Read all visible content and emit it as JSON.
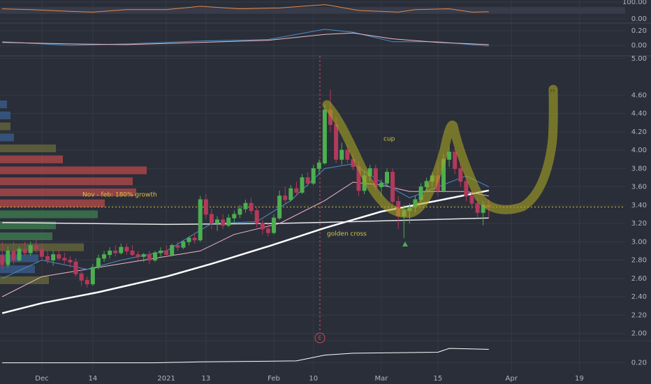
{
  "chart_data": {
    "type": "candlestick",
    "xlim": [
      -7.4,
      103.1
    ],
    "xticks": [
      {
        "value": 0,
        "label": "Dec"
      },
      {
        "value": 9,
        "label": "14"
      },
      {
        "value": 22,
        "label": "2021"
      },
      {
        "value": 29,
        "label": "13"
      },
      {
        "value": 41,
        "label": "Feb"
      },
      {
        "value": 48,
        "label": "10"
      },
      {
        "value": 60,
        "label": "Mar"
      },
      {
        "value": 70,
        "label": "15"
      },
      {
        "value": 83,
        "label": "Apr"
      },
      {
        "value": 95,
        "label": "19"
      }
    ],
    "ylim": [
      1.92,
      5.03
    ],
    "yticks": [
      {
        "value": 5.0,
        "label": "5.00"
      },
      {
        "value": 4.6,
        "label": "4.60"
      },
      {
        "value": 4.4,
        "label": "4.40"
      },
      {
        "value": 4.2,
        "label": "4.20"
      },
      {
        "value": 4.0,
        "label": "4.00"
      },
      {
        "value": 3.8,
        "label": "3.80"
      },
      {
        "value": 3.6,
        "label": "3.60"
      },
      {
        "value": 3.4,
        "label": "3.40"
      },
      {
        "value": 3.2,
        "label": "3.20"
      },
      {
        "value": 3.0,
        "label": "3.00"
      },
      {
        "value": 2.8,
        "label": "2.80"
      },
      {
        "value": 2.6,
        "label": "2.60"
      },
      {
        "value": 2.4,
        "label": "2.40"
      },
      {
        "value": 2.2,
        "label": "2.20"
      },
      {
        "value": 2.0,
        "label": "2.00"
      }
    ],
    "grid": true,
    "up_color": "#4caf50",
    "down_color": "#b23a5a",
    "x": [
      -7,
      -6,
      -5,
      -4,
      -3,
      -2,
      -1,
      0,
      1,
      2,
      3,
      4,
      5,
      6,
      7,
      8,
      9,
      10,
      11,
      12,
      13,
      14,
      15,
      16,
      17,
      18,
      19,
      20,
      21,
      22,
      23,
      24,
      25,
      26,
      27,
      28,
      29,
      30,
      31,
      32,
      33,
      34,
      35,
      36,
      37,
      38,
      39,
      40,
      41,
      42,
      43,
      44,
      45,
      46,
      47,
      48,
      49,
      50,
      51,
      52,
      53,
      54,
      55,
      56,
      57,
      58,
      59,
      60,
      61,
      62,
      63,
      64,
      65,
      66,
      67,
      68,
      69,
      70,
      71,
      72,
      73,
      74,
      75,
      76,
      77,
      78,
      79
    ],
    "ohlc": [
      [
        2.85,
        3.0,
        2.7,
        2.75
      ],
      [
        2.75,
        2.95,
        2.72,
        2.9
      ],
      [
        2.9,
        3.0,
        2.75,
        2.8
      ],
      [
        2.8,
        2.95,
        2.78,
        2.92
      ],
      [
        2.92,
        3.0,
        2.85,
        2.88
      ],
      [
        2.88,
        3.0,
        2.85,
        2.96
      ],
      [
        2.96,
        3.02,
        2.88,
        2.92
      ],
      [
        2.92,
        2.98,
        2.8,
        2.84
      ],
      [
        2.84,
        2.9,
        2.76,
        2.8
      ],
      [
        2.8,
        2.9,
        2.74,
        2.86
      ],
      [
        2.86,
        2.92,
        2.8,
        2.82
      ],
      [
        2.82,
        2.88,
        2.76,
        2.8
      ],
      [
        2.8,
        2.84,
        2.72,
        2.78
      ],
      [
        2.78,
        2.82,
        2.62,
        2.65
      ],
      [
        2.65,
        2.7,
        2.52,
        2.58
      ],
      [
        2.58,
        2.62,
        2.5,
        2.54
      ],
      [
        2.54,
        2.76,
        2.52,
        2.72
      ],
      [
        2.72,
        2.86,
        2.7,
        2.82
      ],
      [
        2.82,
        2.9,
        2.78,
        2.86
      ],
      [
        2.86,
        2.94,
        2.82,
        2.9
      ],
      [
        2.9,
        2.96,
        2.84,
        2.88
      ],
      [
        2.88,
        2.98,
        2.86,
        2.94
      ],
      [
        2.94,
        2.98,
        2.86,
        2.9
      ],
      [
        2.9,
        2.96,
        2.84,
        2.86
      ],
      [
        2.86,
        2.9,
        2.8,
        2.84
      ],
      [
        2.84,
        2.88,
        2.78,
        2.86
      ],
      [
        2.86,
        2.9,
        2.76,
        2.8
      ],
      [
        2.8,
        2.9,
        2.78,
        2.88
      ],
      [
        2.88,
        2.94,
        2.84,
        2.9
      ],
      [
        2.9,
        2.96,
        2.84,
        2.86
      ],
      [
        2.86,
        2.98,
        2.84,
        2.96
      ],
      [
        2.96,
        3.0,
        2.9,
        2.94
      ],
      [
        2.94,
        3.02,
        2.92,
        3.0
      ],
      [
        3.0,
        3.06,
        2.96,
        3.04
      ],
      [
        3.04,
        3.1,
        2.98,
        3.02
      ],
      [
        3.02,
        3.5,
        3.0,
        3.46
      ],
      [
        3.46,
        3.52,
        3.25,
        3.3
      ],
      [
        3.3,
        3.36,
        3.14,
        3.2
      ],
      [
        3.2,
        3.28,
        3.12,
        3.24
      ],
      [
        3.24,
        3.3,
        3.14,
        3.18
      ],
      [
        3.18,
        3.3,
        3.16,
        3.26
      ],
      [
        3.26,
        3.34,
        3.2,
        3.3
      ],
      [
        3.3,
        3.4,
        3.26,
        3.36
      ],
      [
        3.36,
        3.46,
        3.32,
        3.42
      ],
      [
        3.42,
        3.48,
        3.3,
        3.34
      ],
      [
        3.34,
        3.38,
        3.16,
        3.2
      ],
      [
        3.2,
        3.24,
        3.08,
        3.14
      ],
      [
        3.14,
        3.2,
        3.06,
        3.1
      ],
      [
        3.1,
        3.3,
        3.08,
        3.26
      ],
      [
        3.26,
        3.56,
        3.24,
        3.5
      ],
      [
        3.5,
        3.6,
        3.42,
        3.46
      ],
      [
        3.46,
        3.62,
        3.44,
        3.58
      ],
      [
        3.58,
        3.66,
        3.5,
        3.54
      ],
      [
        3.54,
        3.74,
        3.52,
        3.7
      ],
      [
        3.7,
        3.76,
        3.6,
        3.64
      ],
      [
        3.64,
        3.84,
        3.62,
        3.8
      ],
      [
        3.8,
        3.9,
        3.74,
        3.86
      ],
      [
        3.86,
        4.5,
        3.84,
        4.44
      ],
      [
        4.44,
        4.66,
        4.2,
        4.28
      ],
      [
        4.28,
        4.36,
        3.86,
        3.9
      ],
      [
        3.9,
        4.08,
        3.84,
        4.0
      ],
      [
        4.0,
        4.06,
        3.86,
        3.9
      ],
      [
        3.9,
        3.96,
        3.78,
        3.82
      ],
      [
        3.82,
        3.88,
        3.5,
        3.56
      ],
      [
        3.56,
        3.78,
        3.52,
        3.72
      ],
      [
        3.72,
        3.84,
        3.66,
        3.8
      ],
      [
        3.8,
        3.84,
        3.56,
        3.6
      ],
      [
        3.6,
        3.68,
        3.5,
        3.64
      ],
      [
        3.64,
        3.8,
        3.6,
        3.76
      ],
      [
        3.76,
        3.8,
        3.4,
        3.44
      ],
      [
        3.44,
        3.5,
        3.14,
        3.28
      ],
      [
        3.28,
        3.4,
        3.04,
        3.34
      ],
      [
        3.34,
        3.42,
        3.2,
        3.38
      ],
      [
        3.38,
        3.5,
        3.32,
        3.46
      ],
      [
        3.46,
        3.64,
        3.42,
        3.6
      ],
      [
        3.6,
        3.7,
        3.54,
        3.66
      ],
      [
        3.66,
        3.76,
        3.6,
        3.72
      ],
      [
        3.72,
        3.86,
        3.5,
        3.56
      ],
      [
        3.56,
        3.96,
        3.54,
        3.9
      ],
      [
        3.9,
        4.04,
        3.82,
        3.98
      ],
      [
        3.98,
        4.02,
        3.74,
        3.8
      ],
      [
        3.8,
        3.86,
        3.6,
        3.66
      ],
      [
        3.66,
        3.72,
        3.44,
        3.5
      ],
      [
        3.5,
        3.56,
        3.36,
        3.42
      ],
      [
        3.42,
        3.48,
        3.26,
        3.32
      ],
      [
        3.32,
        3.44,
        3.18,
        3.4
      ],
      [
        3.4,
        3.46,
        3.26,
        3.38
      ]
    ],
    "moving_averages": [
      {
        "color": "#ffffff",
        "width": 2.5,
        "x": [
          -7,
          0,
          10,
          22,
          30,
          40,
          50,
          60,
          70,
          79
        ],
        "values": [
          2.22,
          2.33,
          2.45,
          2.62,
          2.76,
          2.95,
          3.15,
          3.33,
          3.45,
          3.56
        ]
      },
      {
        "color": "#e8e8e8",
        "width": 1.5,
        "x": [
          -7,
          22,
          41,
          55,
          79
        ],
        "values": [
          3.21,
          3.19,
          3.2,
          3.22,
          3.26
        ]
      },
      {
        "color": "#f0b8c8",
        "width": 1,
        "x": [
          -7,
          0,
          10,
          20,
          28,
          34,
          42,
          50,
          55,
          60,
          65,
          70,
          75,
          79
        ],
        "values": [
          2.4,
          2.62,
          2.72,
          2.82,
          2.9,
          3.08,
          3.2,
          3.45,
          3.65,
          3.62,
          3.55,
          3.55,
          3.55,
          3.5
        ]
      },
      {
        "color": "#4a90c8",
        "width": 1,
        "x": [
          -7,
          0,
          8,
          14,
          22,
          30,
          38,
          44,
          50,
          55,
          60,
          65,
          70,
          75,
          79
        ],
        "values": [
          2.6,
          2.8,
          2.7,
          2.8,
          2.9,
          3.2,
          3.22,
          3.45,
          3.8,
          3.85,
          3.65,
          3.48,
          3.6,
          3.72,
          3.6
        ]
      }
    ],
    "price_line": {
      "value": 3.38,
      "color": "#d4c22f"
    },
    "volume_profile": {
      "prices": [
        4.5,
        4.38,
        4.26,
        4.14,
        4.02,
        3.9,
        3.78,
        3.66,
        3.54,
        3.42,
        3.3,
        3.18,
        3.06,
        2.94,
        2.82,
        2.7,
        2.58
      ],
      "values": [
        10,
        15,
        15,
        20,
        80,
        90,
        210,
        190,
        195,
        150,
        140,
        80,
        75,
        120,
        55,
        50,
        70
      ],
      "colors": [
        "#3a5f8f",
        "#3a5f8f",
        "#6a6a3a",
        "#3a5f8f",
        "#6a6a3a",
        "#b84a4a",
        "#b84a4a",
        "#b84a4a",
        "#b84a4a",
        "#b84a4a",
        "#3f7f4f",
        "#3f7f4f",
        "#3f7f4f",
        "#6a6a3a",
        "#3a5f8f",
        "#3a5f8f",
        "#6a6a3a"
      ]
    },
    "rsi": {
      "ylim": [
        -25,
        112.5
      ],
      "yticks": [
        {
          "value": 100,
          "label": "100.00"
        },
        {
          "value": 0,
          "label": "0.00"
        }
      ],
      "band": [
        30,
        70
      ],
      "color": "#e08a4a",
      "x": [
        -7,
        -2,
        5,
        9,
        15,
        22,
        28,
        35,
        42,
        50,
        51,
        56,
        63,
        66,
        72,
        76,
        79
      ],
      "values": [
        60,
        55,
        45,
        40,
        55,
        55,
        75,
        60,
        65,
        85,
        80,
        50,
        40,
        55,
        60,
        40,
        42
      ]
    },
    "macd": {
      "ylim": [
        -0.143,
        0.305
      ],
      "yticks": [
        {
          "value": 0.2,
          "label": "0.20"
        },
        {
          "value": 0,
          "label": "0.00"
        }
      ],
      "lines": [
        {
          "color": "#4a90c8",
          "x": [
            -7,
            5,
            15,
            28,
            40,
            50,
            55,
            62,
            70,
            79
          ],
          "values": [
            0.05,
            0.0,
            0.02,
            0.06,
            0.08,
            0.22,
            0.18,
            0.05,
            0.05,
            -0.01
          ]
        },
        {
          "color": "#f0b8c8",
          "x": [
            -7,
            5,
            15,
            28,
            40,
            50,
            55,
            62,
            70,
            79
          ],
          "values": [
            0.04,
            0.02,
            0.01,
            0.04,
            0.07,
            0.15,
            0.17,
            0.09,
            0.04,
            0.01
          ]
        }
      ]
    },
    "volume": {
      "ylim": [
        0.11,
        0.43
      ],
      "yticks": [
        {
          "value": 0.2,
          "label": "0.20"
        }
      ],
      "color": "#ffffff",
      "x": [
        -7,
        20,
        28,
        45,
        50,
        55,
        70,
        72,
        79
      ],
      "values": [
        0.2,
        0.2,
        0.21,
        0.22,
        0.28,
        0.3,
        0.31,
        0.35,
        0.34
      ]
    },
    "annotations": {
      "cup": "cup",
      "growth": "Nov - feb: 180% growth",
      "golden_cross": "golden cross",
      "target": "??",
      "earnings": "E"
    }
  }
}
